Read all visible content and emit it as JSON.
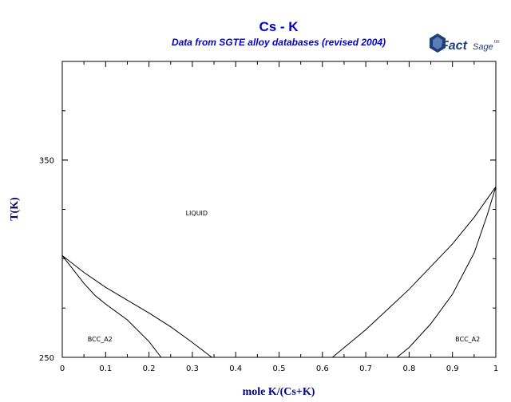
{
  "chart_data": {
    "type": "line",
    "title": "Cs - K",
    "subtitle": "Data from SGTE alloy databases (revised 2004)",
    "xlabel": "mole K/(Cs+K)",
    "ylabel": "T(K)",
    "xlim": [
      0,
      1
    ],
    "ylim": [
      250,
      400
    ],
    "x_ticks": [
      "0",
      "0.1",
      "0.2",
      "0.3",
      "0.4",
      "0.5",
      "0.6",
      "0.7",
      "0.8",
      "0.9",
      "1"
    ],
    "y_ticks": [
      "250",
      "350"
    ],
    "grid": false,
    "annotations": [
      {
        "text": "LIQUID",
        "x": 0.31,
        "y": 322
      },
      {
        "text": "BCC_A2",
        "x": 0.087,
        "y": 258
      },
      {
        "text": "BCC_A2",
        "x": 0.935,
        "y": 258
      }
    ],
    "series": [
      {
        "x": [
          0,
          0.05,
          0.1,
          0.15,
          0.2,
          0.25,
          0.3,
          0.345
        ],
        "y": [
          301.6,
          293,
          285.5,
          279,
          272.5,
          265.5,
          257.5,
          250
        ]
      },
      {
        "x": [
          0,
          0.025,
          0.05,
          0.075,
          0.1,
          0.15,
          0.2,
          0.228
        ],
        "y": [
          301.6,
          294.5,
          287.5,
          281.5,
          277,
          269,
          258,
          250
        ]
      },
      {
        "x": [
          0.623,
          0.7,
          0.8,
          0.9,
          0.95,
          1
        ],
        "y": [
          250,
          264,
          284.5,
          307.5,
          321,
          336.5
        ]
      },
      {
        "x": [
          0.772,
          0.8,
          0.85,
          0.9,
          0.95,
          0.98,
          1
        ],
        "y": [
          250,
          255,
          267,
          282,
          303,
          322,
          336.5
        ]
      }
    ]
  },
  "logo": {
    "text_fact": "Fact",
    "text_sage": "Sage",
    "tm": "tm"
  }
}
